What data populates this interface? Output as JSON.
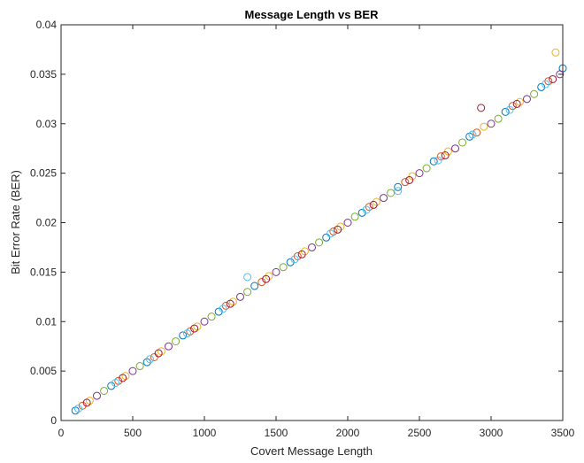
{
  "chart_data": {
    "type": "scatter",
    "title": "Message Length vs BER",
    "xlabel": "Covert Message Length",
    "ylabel": "Bit Error Rate (BER)",
    "xlim": [
      0,
      3500
    ],
    "ylim": [
      0,
      0.04
    ],
    "x_ticks": [
      0,
      500,
      1000,
      1500,
      2000,
      2500,
      3000,
      3500
    ],
    "x_tick_labels": [
      "0",
      "500",
      "1000",
      "1500",
      "2000",
      "2500",
      "3000",
      "3500"
    ],
    "y_ticks": [
      0,
      0.005,
      0.01,
      0.015,
      0.02,
      0.025,
      0.03,
      0.035,
      0.04
    ],
    "y_tick_labels": [
      "0",
      "0.005",
      "0.01",
      "0.015",
      "0.02",
      "0.025",
      "0.03",
      "0.035",
      "0.04"
    ],
    "grid": false,
    "marker": "open-circle",
    "series": [
      {
        "color": "#0072BD",
        "x": [
          100,
          350,
          600,
          850,
          1100,
          1350,
          1600,
          1850,
          2100,
          2350,
          2600,
          2850,
          3100,
          3350,
          3500
        ],
        "y": [
          0.001,
          0.0035,
          0.0059,
          0.0086,
          0.011,
          0.0136,
          0.016,
          0.0185,
          0.021,
          0.0236,
          0.0262,
          0.0287,
          0.0312,
          0.0337,
          0.0356
        ]
      },
      {
        "color": "#D95319",
        "x": [
          150,
          400,
          650,
          900,
          1150,
          1400,
          1650,
          1900,
          2150,
          2400,
          2650,
          2900,
          3150,
          3400
        ],
        "y": [
          0.0015,
          0.004,
          0.0064,
          0.009,
          0.0116,
          0.014,
          0.0166,
          0.0191,
          0.0216,
          0.0241,
          0.0267,
          0.0291,
          0.0318,
          0.0343
        ]
      },
      {
        "color": "#EDB120",
        "x": [
          200,
          450,
          700,
          950,
          1200,
          1450,
          1700,
          1950,
          2200,
          2450,
          2700,
          2950,
          3200,
          3450
        ],
        "y": [
          0.002,
          0.0045,
          0.007,
          0.0095,
          0.012,
          0.0146,
          0.0171,
          0.0196,
          0.0221,
          0.0247,
          0.0272,
          0.0297,
          0.0322,
          0.0372
        ]
      },
      {
        "color": "#7E2F8E",
        "x": [
          250,
          500,
          750,
          1000,
          1250,
          1500,
          1750,
          2000,
          2250,
          2500,
          2750,
          3000,
          3250,
          3480
        ],
        "y": [
          0.0025,
          0.005,
          0.0075,
          0.01,
          0.0125,
          0.015,
          0.0175,
          0.02,
          0.0225,
          0.025,
          0.0275,
          0.03,
          0.0325,
          0.035
        ]
      },
      {
        "color": "#77AC30",
        "x": [
          300,
          550,
          800,
          1050,
          1300,
          1550,
          1800,
          2050,
          2300,
          2550,
          2800,
          3050,
          3300
        ],
        "y": [
          0.003,
          0.0055,
          0.008,
          0.0105,
          0.013,
          0.0155,
          0.018,
          0.0206,
          0.023,
          0.0255,
          0.0281,
          0.0305,
          0.033
        ]
      },
      {
        "color": "#4DBEEE",
        "x": [
          120,
          380,
          620,
          880,
          1130,
          1300,
          1630,
          1880,
          2130,
          2350,
          2630,
          2870,
          3130,
          3380
        ],
        "y": [
          0.0012,
          0.0038,
          0.0062,
          0.0088,
          0.0113,
          0.0145,
          0.0163,
          0.0189,
          0.0213,
          0.0232,
          0.0263,
          0.0289,
          0.0314,
          0.034
        ]
      },
      {
        "color": "#A2142F",
        "x": [
          180,
          430,
          680,
          930,
          1180,
          1430,
          1680,
          1930,
          2180,
          2430,
          2680,
          2930,
          3180,
          3430
        ],
        "y": [
          0.0018,
          0.0043,
          0.0068,
          0.0093,
          0.0118,
          0.0143,
          0.0168,
          0.0193,
          0.0218,
          0.0243,
          0.0268,
          0.0316,
          0.032,
          0.0345
        ]
      }
    ]
  }
}
